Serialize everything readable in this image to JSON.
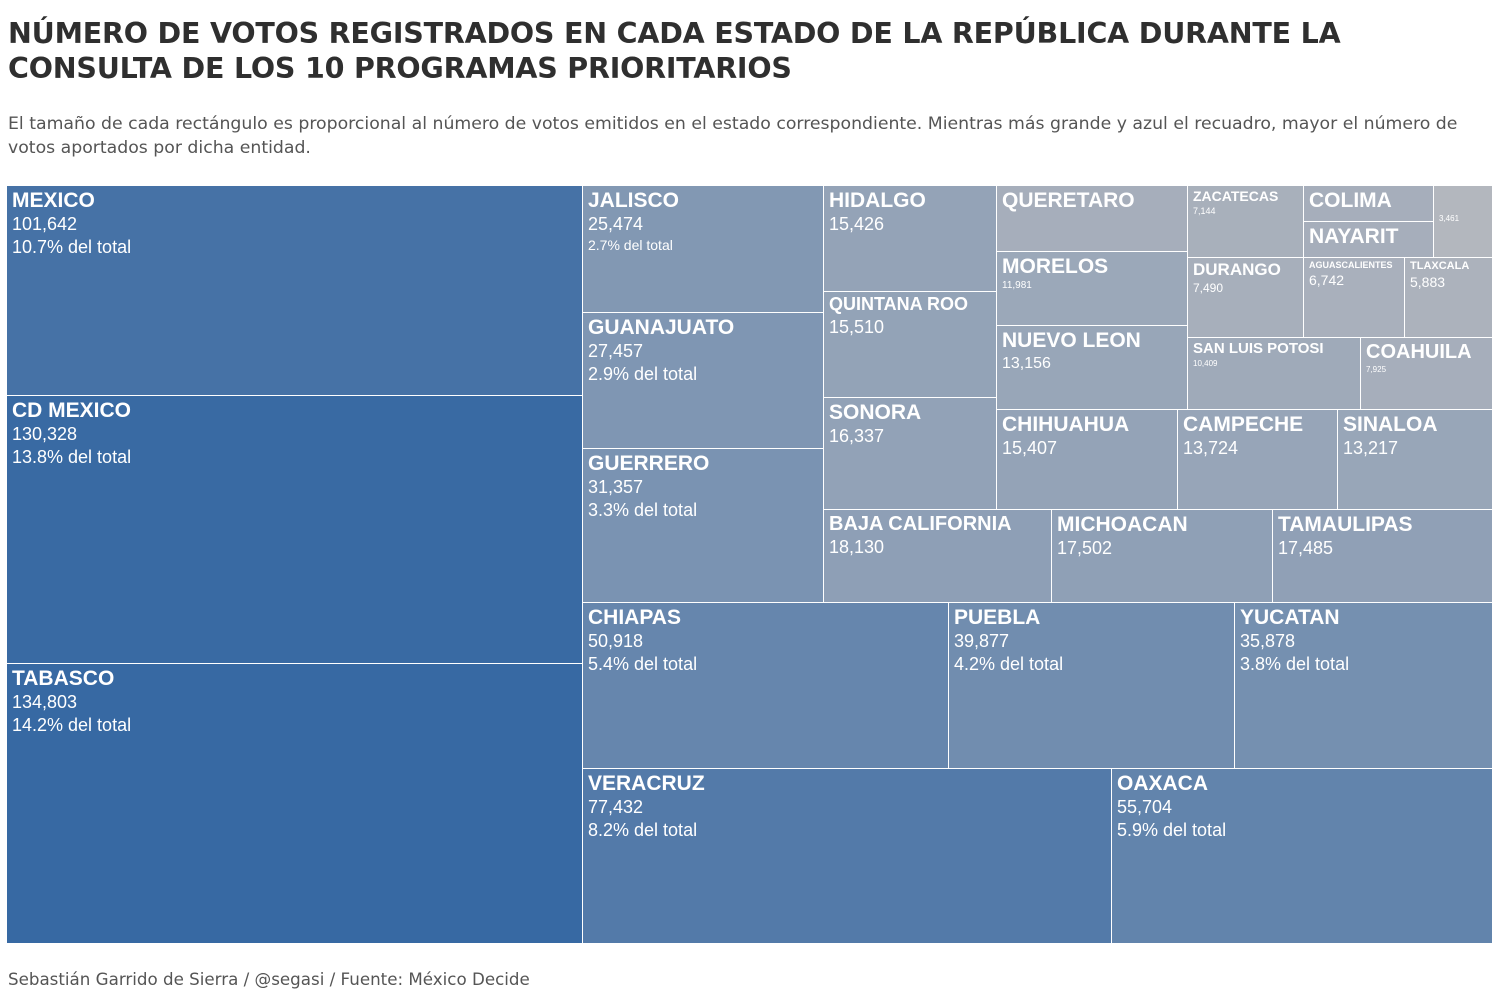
{
  "title": "NÚMERO DE VOTOS REGISTRADOS EN CADA ESTADO DE LA REPÚBLICA DURANTE LA CONSULTA DE LOS 10 PROGRAMAS PRIORITARIOS",
  "subtitle": "El tamaño de cada rectángulo es proporcional al número de votos emitidos en el estado correspondiente. Mientras más grande y azul el recuadro, mayor el número de votos aportados por dicha entidad.",
  "footer": "Sebastián Garrido de Sierra / @segasi / Fuente: México Decide",
  "chart_data": {
    "type": "treemap",
    "value_label": "votos",
    "color_scale": {
      "low": "#b4b7be",
      "high": "#3769a3"
    },
    "items": [
      {
        "name": "MEXICO",
        "value": 101642,
        "value_text": "101,642",
        "share_text": "10.7% del total"
      },
      {
        "name": "CD MEXICO",
        "value": 130328,
        "value_text": "130,328",
        "share_text": "13.8% del total"
      },
      {
        "name": "TABASCO",
        "value": 134803,
        "value_text": "134,803",
        "share_text": "14.2% del total"
      },
      {
        "name": "JALISCO",
        "value": 25474,
        "value_text": "25,474",
        "share_text": "2.7% del total"
      },
      {
        "name": "GUANAJUATO",
        "value": 27457,
        "value_text": "27,457",
        "share_text": "2.9% del total"
      },
      {
        "name": "GUERRERO",
        "value": 31357,
        "value_text": "31,357",
        "share_text": "3.3% del total"
      },
      {
        "name": "HIDALGO",
        "value": 15426,
        "value_text": "15,426",
        "share_text": ""
      },
      {
        "name": "QUINTANA ROO",
        "value": 15510,
        "value_text": "15,510",
        "share_text": ""
      },
      {
        "name": "SONORA",
        "value": 16337,
        "value_text": "16,337",
        "share_text": ""
      },
      {
        "name": "QUERETARO",
        "value": null,
        "value_text": "",
        "share_text": ""
      },
      {
        "name": "MORELOS",
        "value": 11981,
        "value_text": "11,981",
        "share_text": ""
      },
      {
        "name": "NUEVO LEON",
        "value": 13156,
        "value_text": "13,156",
        "share_text": ""
      },
      {
        "name": "ZACATECAS",
        "value": 7144,
        "value_text": "7,144",
        "share_text": ""
      },
      {
        "name": "COLIMA",
        "value": null,
        "value_text": "",
        "share_text": ""
      },
      {
        "name": "NAYARIT",
        "value": null,
        "value_text": "",
        "share_text": ""
      },
      {
        "name": "",
        "value": 3461,
        "value_text": "3,461",
        "share_text": ""
      },
      {
        "name": "DURANGO",
        "value": 7490,
        "value_text": "7,490",
        "share_text": ""
      },
      {
        "name": "AGUASCALIENTES",
        "value": 6742,
        "value_text": "6,742",
        "share_text": ""
      },
      {
        "name": "TLAXCALA",
        "value": 5883,
        "value_text": "5,883",
        "share_text": ""
      },
      {
        "name": "SAN LUIS POTOSI",
        "value": 10409,
        "value_text": "10,409",
        "share_text": ""
      },
      {
        "name": "COAHUILA",
        "value": 7925,
        "value_text": "7,925",
        "share_text": ""
      },
      {
        "name": "CHIHUAHUA",
        "value": 15407,
        "value_text": "15,407",
        "share_text": ""
      },
      {
        "name": "CAMPECHE",
        "value": 13724,
        "value_text": "13,724",
        "share_text": ""
      },
      {
        "name": "SINALOA",
        "value": 13217,
        "value_text": "13,217",
        "share_text": ""
      },
      {
        "name": "BAJA CALIFORNIA",
        "value": 18130,
        "value_text": "18,130",
        "share_text": ""
      },
      {
        "name": "MICHOACAN",
        "value": 17502,
        "value_text": "17,502",
        "share_text": ""
      },
      {
        "name": "TAMAULIPAS",
        "value": 17485,
        "value_text": "17,485",
        "share_text": ""
      },
      {
        "name": "CHIAPAS",
        "value": 50918,
        "value_text": "50,918",
        "share_text": "5.4% del total"
      },
      {
        "name": "PUEBLA",
        "value": 39877,
        "value_text": "39,877",
        "share_text": "4.2% del total"
      },
      {
        "name": "YUCATAN",
        "value": 35878,
        "value_text": "35,878",
        "share_text": "3.8% del total"
      },
      {
        "name": "VERACRUZ",
        "value": 77432,
        "value_text": "77,432",
        "share_text": "8.2% del total"
      },
      {
        "name": "OAXACA",
        "value": 55704,
        "value_text": "55,704",
        "share_text": "5.9% del total"
      }
    ]
  }
}
